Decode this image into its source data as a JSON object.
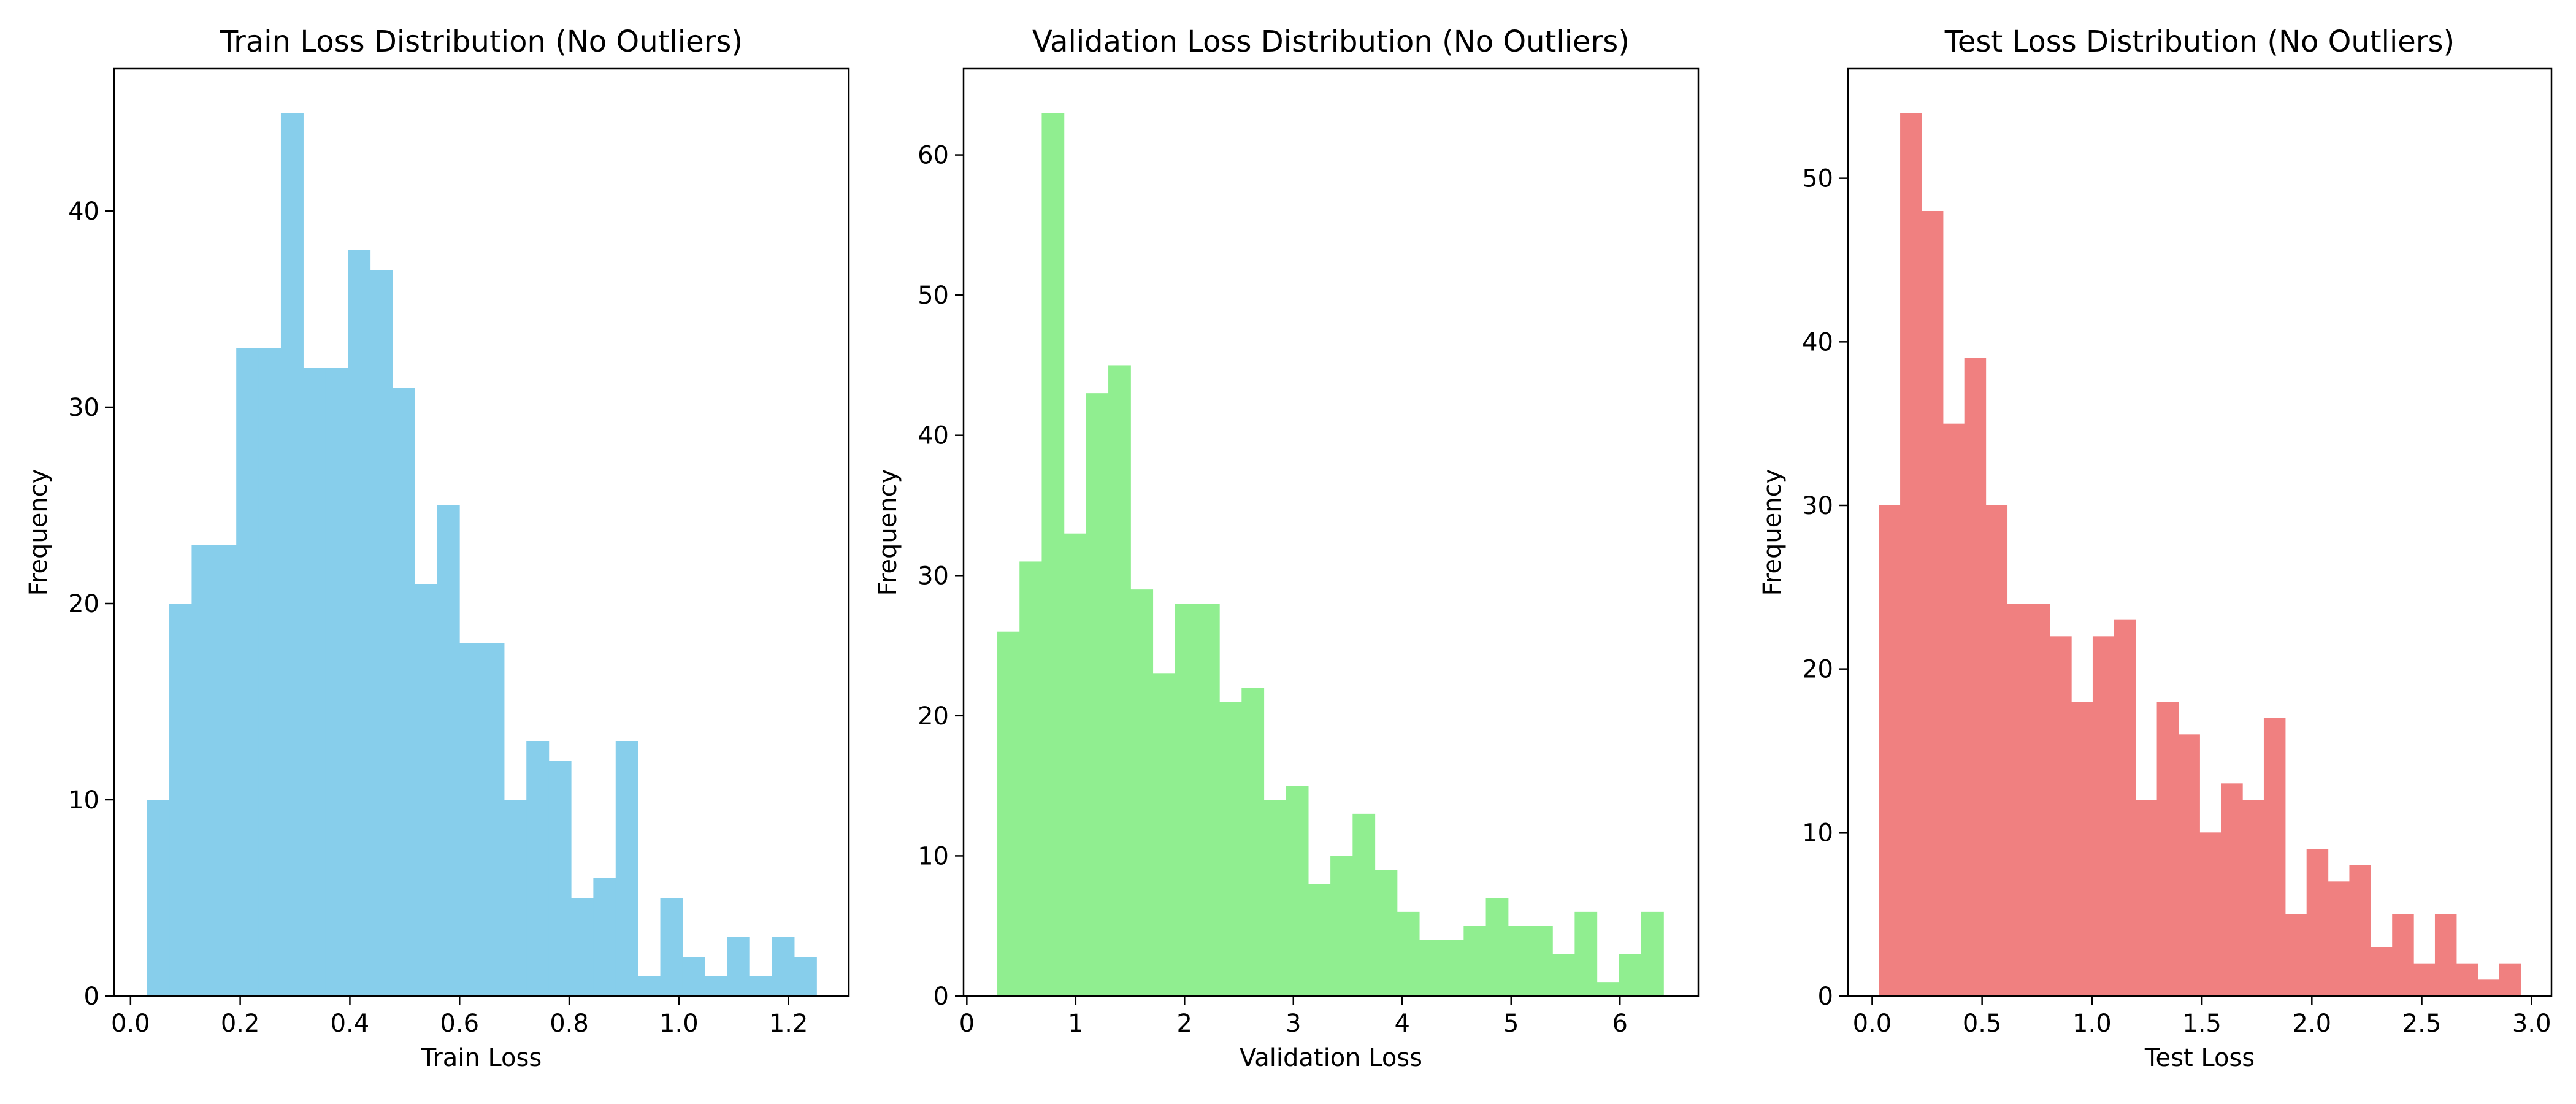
{
  "chart_data": [
    {
      "type": "bar",
      "title": "Train Loss Distribution (No Outliers)",
      "xlabel": "Train Loss",
      "ylabel": "Frequency",
      "color": "#87CEEB",
      "bin_start": 0.03,
      "bin_width": 0.0407,
      "values": [
        10,
        20,
        23,
        23,
        33,
        33,
        45,
        32,
        32,
        38,
        37,
        31,
        21,
        25,
        18,
        18,
        10,
        13,
        12,
        5,
        6,
        13,
        1,
        5,
        2,
        1,
        3,
        1,
        3,
        2
      ],
      "xlim": [
        -0.03,
        1.31
      ],
      "ylim": [
        0,
        47.25
      ],
      "xticks": [
        0.0,
        0.2,
        0.4,
        0.6,
        0.8,
        1.0,
        1.2
      ],
      "xtick_labels": [
        "0.0",
        "0.2",
        "0.4",
        "0.6",
        "0.8",
        "1.0",
        "1.2"
      ],
      "yticks": [
        0,
        10,
        20,
        30,
        40
      ],
      "ytick_labels": [
        "0",
        "10",
        "20",
        "30",
        "40"
      ]
    },
    {
      "type": "bar",
      "title": "Validation Loss Distribution (No Outliers)",
      "xlabel": "Validation Loss",
      "ylabel": "Frequency",
      "color": "#90EE90",
      "bin_start": 0.28,
      "bin_width": 0.204,
      "values": [
        26,
        31,
        63,
        33,
        43,
        45,
        29,
        23,
        28,
        28,
        21,
        22,
        14,
        15,
        8,
        10,
        13,
        9,
        6,
        4,
        4,
        5,
        7,
        5,
        5,
        3,
        6,
        1,
        3,
        6
      ],
      "xlim": [
        -0.03,
        6.72
      ],
      "ylim": [
        0,
        66.15
      ],
      "xticks": [
        0,
        1,
        2,
        3,
        4,
        5,
        6
      ],
      "xtick_labels": [
        "0",
        "1",
        "2",
        "3",
        "4",
        "5",
        "6"
      ],
      "yticks": [
        0,
        10,
        20,
        30,
        40,
        50,
        60
      ],
      "ytick_labels": [
        "0",
        "10",
        "20",
        "30",
        "40",
        "50",
        "60"
      ]
    },
    {
      "type": "bar",
      "title": "Test Loss Distribution (No Outliers)",
      "xlabel": "Test Loss",
      "ylabel": "Frequency",
      "color": "#F08080",
      "bin_start": 0.03,
      "bin_width": 0.0973,
      "values": [
        30,
        54,
        48,
        35,
        39,
        30,
        24,
        24,
        22,
        18,
        22,
        23,
        12,
        18,
        16,
        10,
        13,
        12,
        17,
        5,
        9,
        7,
        8,
        3,
        5,
        2,
        5,
        2,
        1,
        2
      ],
      "xlim": [
        -0.11,
        3.09
      ],
      "ylim": [
        0,
        56.7
      ],
      "xticks": [
        0.0,
        0.5,
        1.0,
        1.5,
        2.0,
        2.5,
        3.0
      ],
      "xtick_labels": [
        "0.0",
        "0.5",
        "1.0",
        "1.5",
        "2.0",
        "2.5",
        "3.0"
      ],
      "yticks": [
        0,
        10,
        20,
        30,
        40,
        50
      ],
      "ytick_labels": [
        "0",
        "10",
        "20",
        "30",
        "40",
        "50"
      ]
    }
  ]
}
